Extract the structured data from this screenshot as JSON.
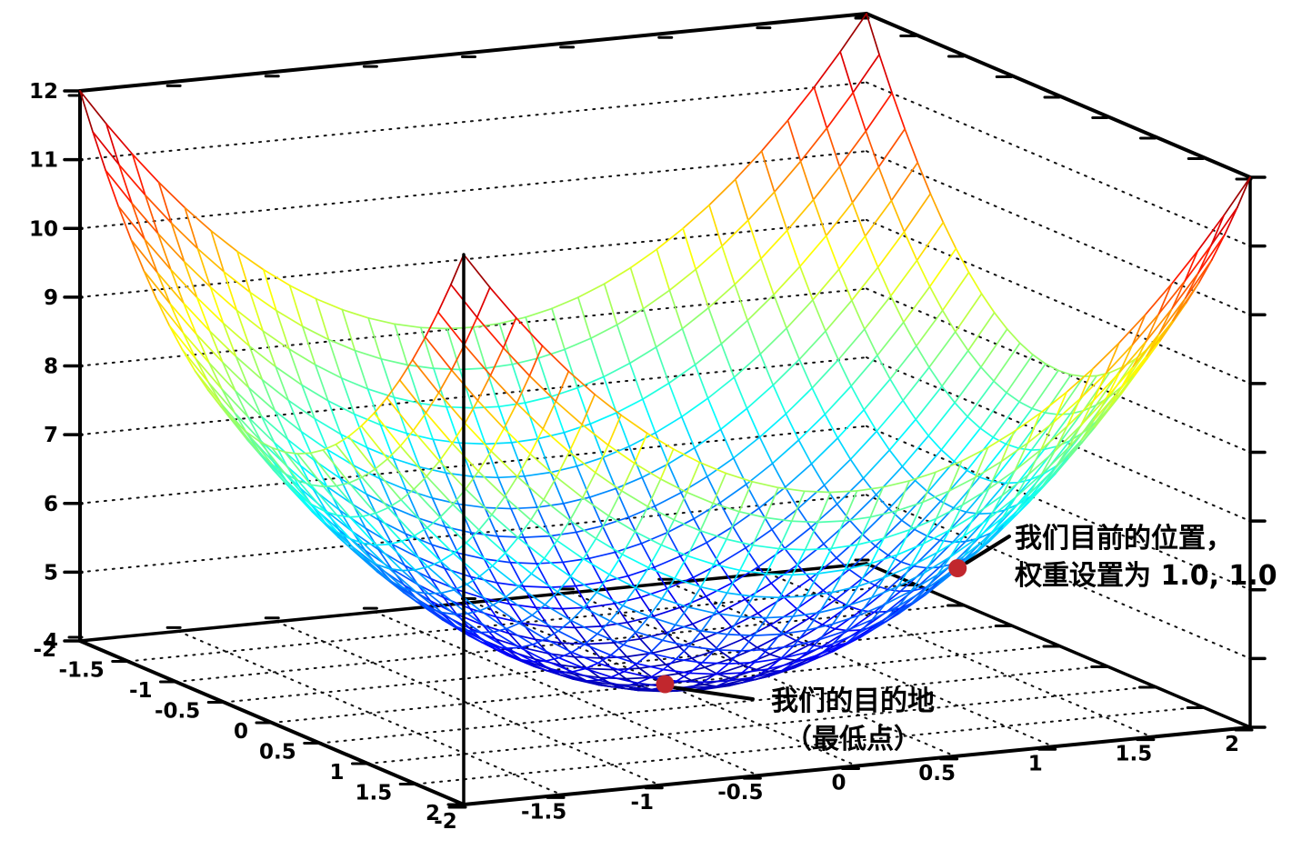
{
  "figure": {
    "background": "#ffffff",
    "colors": {
      "axis": "#000000",
      "grid_dots": "#111111",
      "marker": "#c1272d",
      "annotation_text": "#000000",
      "leader_line": "#000000"
    }
  },
  "chart_data": {
    "type": "surface",
    "surface_function": "z = x^2 + y^2 + 4",
    "x_range": [
      -2,
      2
    ],
    "y_range": [
      -2,
      2
    ],
    "z_range": [
      4,
      12
    ],
    "x_ticks": [
      "-2",
      "-1.5",
      "-1",
      "-0.5",
      "0",
      "0.5",
      "1",
      "1.5",
      "2"
    ],
    "y_ticks": [
      "-2",
      "-1.5",
      "-1",
      "-0.5",
      "0",
      "0.5",
      "1",
      "1.5",
      "2"
    ],
    "z_ticks": [
      "4",
      "5",
      "6",
      "7",
      "8",
      "9",
      "10",
      "11",
      "12"
    ],
    "floor_grid_step": 0.5,
    "wall_grid_step": 1,
    "mesh_divisions": 30,
    "colormap": "jet",
    "grid_style": "dotted",
    "legend": "none",
    "markers": [
      {
        "name": "current-position",
        "x": 1,
        "y": 1,
        "z": 6,
        "color": "#c1272d",
        "label_lines": [
          "我们目前的位置，",
          "权重设置为 1.0, 1.0"
        ]
      },
      {
        "name": "destination-minimum",
        "x": 0,
        "y": 0,
        "z": 4,
        "color": "#c1272d",
        "label_lines": [
          "我们的目的地",
          "（最低点）"
        ]
      }
    ]
  }
}
